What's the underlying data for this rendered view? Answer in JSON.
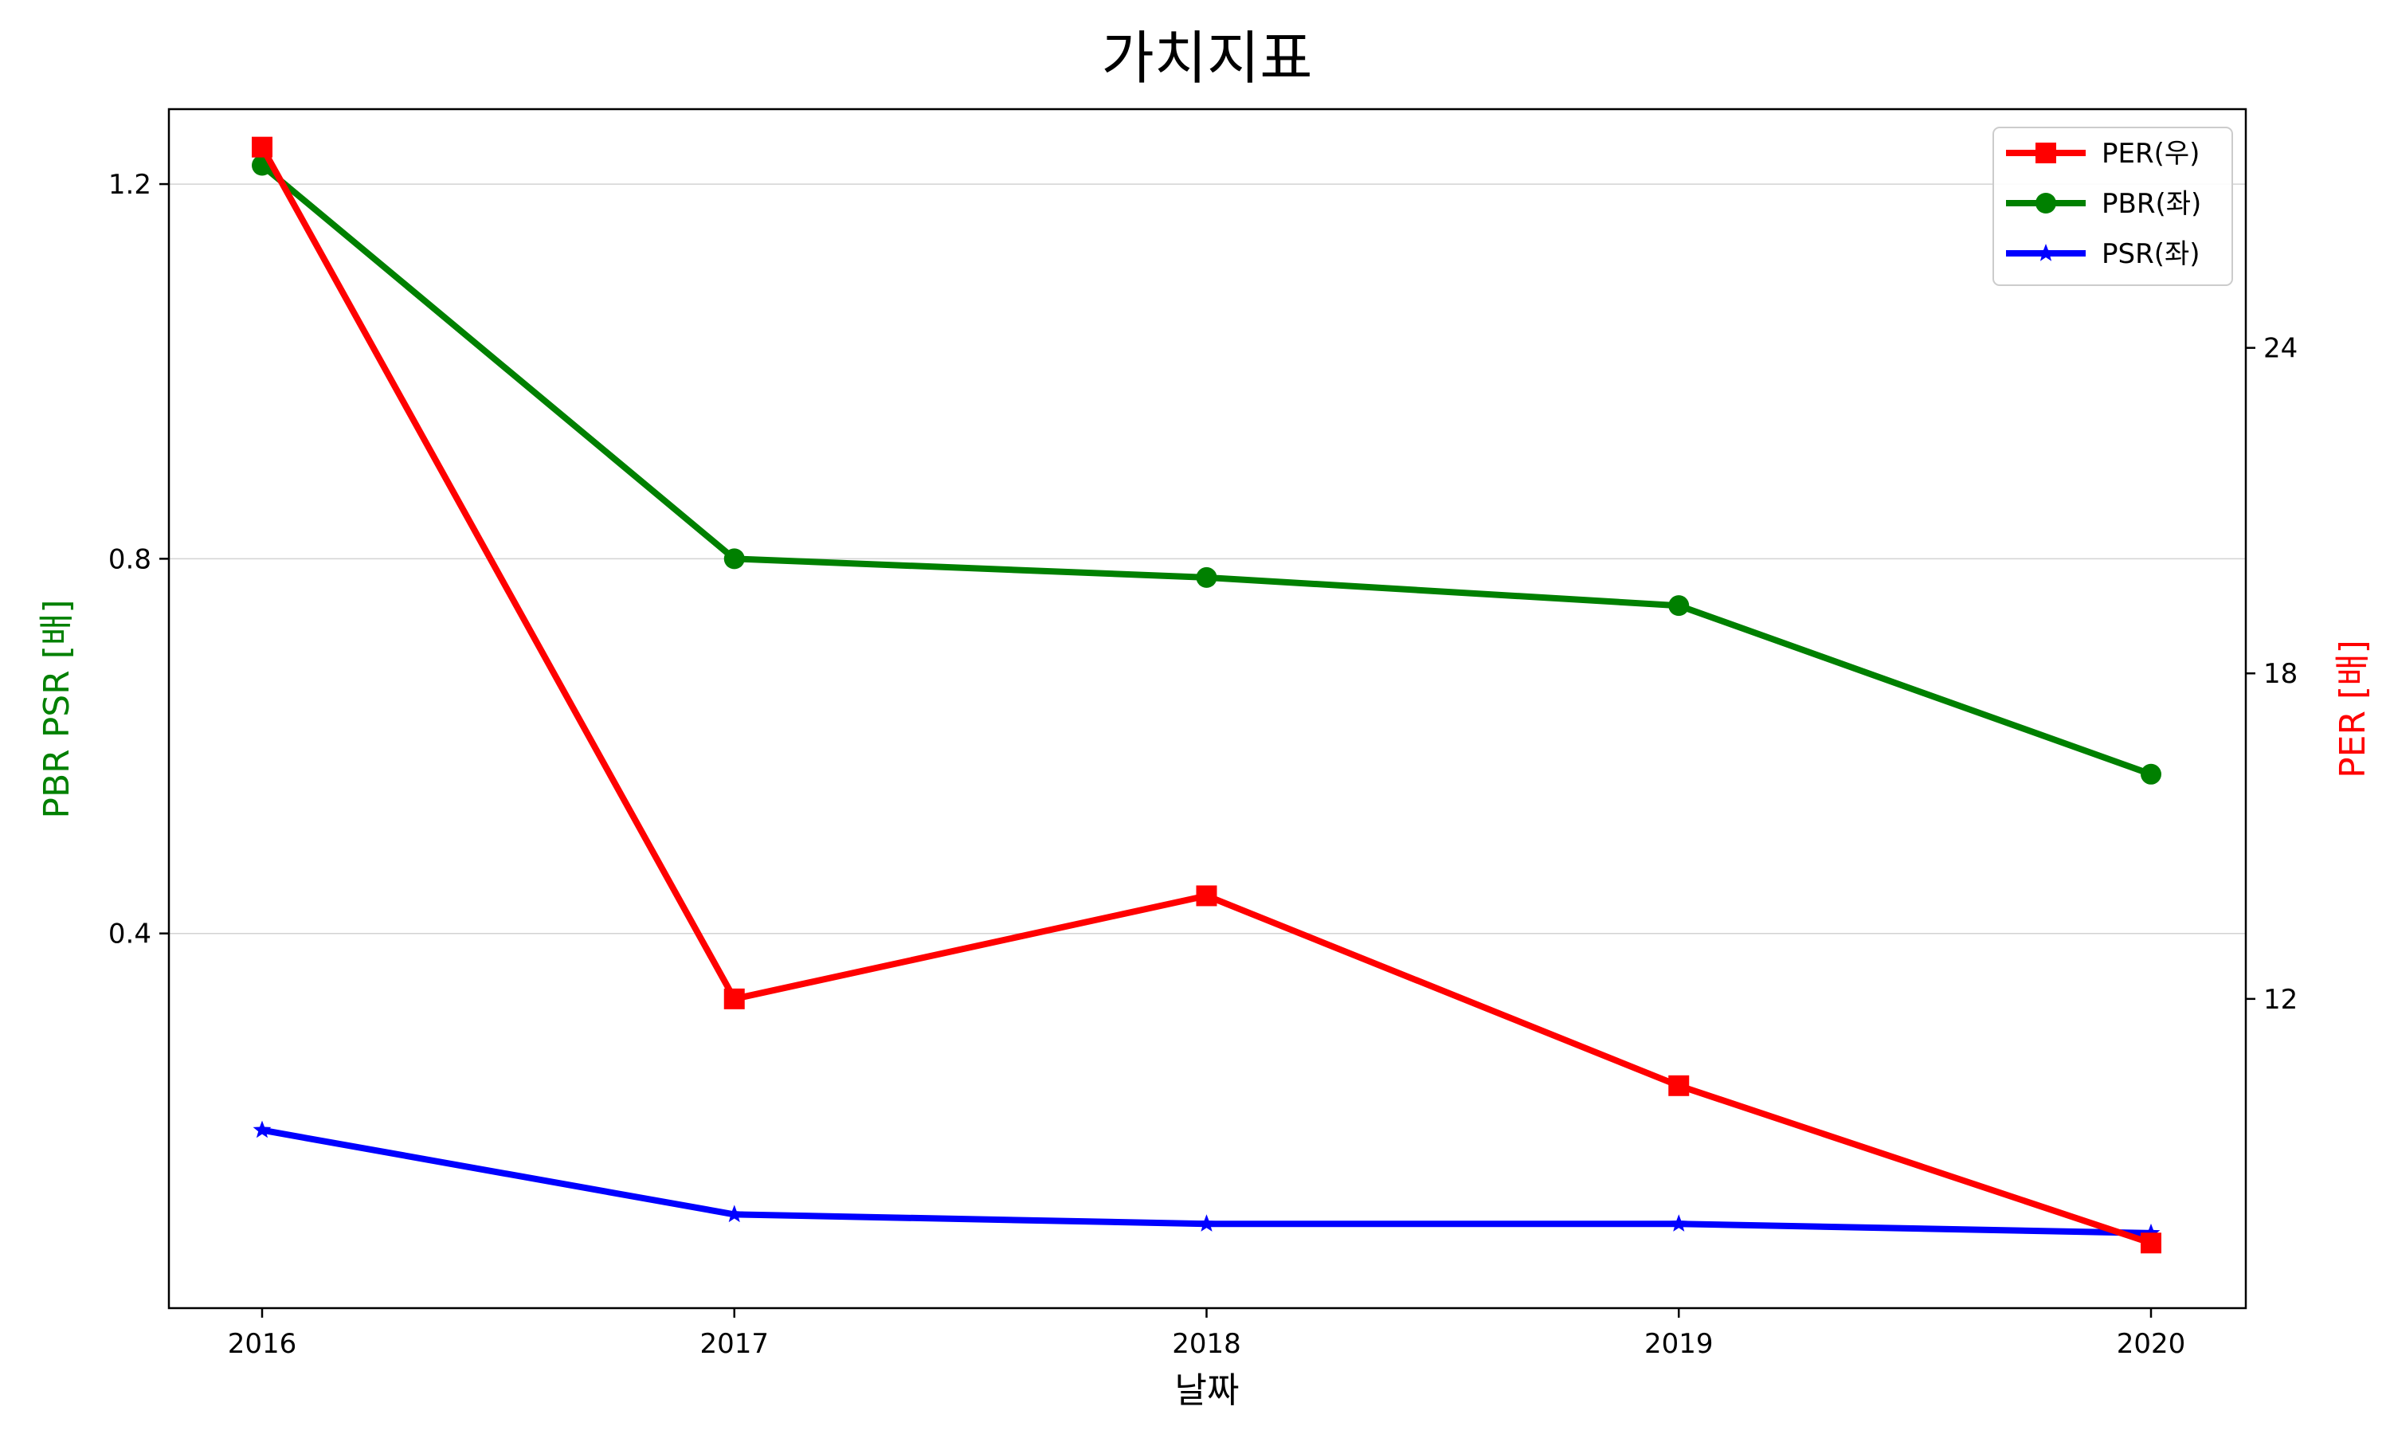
{
  "chart_data": {
    "type": "line",
    "title": "가치지표",
    "xlabel": "날짜",
    "ylabel_left": "PBR PSR [배]",
    "ylabel_right": "PER [배]",
    "x": [
      "2016",
      "2017",
      "2018",
      "2019",
      "2020"
    ],
    "left_axis": {
      "ylim": [
        0.0,
        1.28
      ],
      "ticks": [
        0.4,
        0.8,
        1.2
      ],
      "tick_labels": [
        "0.4",
        "0.8",
        "1.2"
      ],
      "color": "#008000"
    },
    "right_axis": {
      "ylim": [
        6.3,
        28.4
      ],
      "ticks": [
        12,
        18,
        24
      ],
      "tick_labels": [
        "12",
        "18",
        "24"
      ],
      "color": "#ff0000"
    },
    "grid": "horizontal (left axis)",
    "legend": "top-right",
    "series": [
      {
        "name": "PER(우)",
        "axis": "right",
        "color": "#ff0000",
        "marker": "square",
        "values": [
          27.7,
          12.0,
          13.9,
          10.4,
          7.5
        ]
      },
      {
        "name": "PBR(좌)",
        "axis": "left",
        "color": "#008000",
        "marker": "circle",
        "values": [
          1.22,
          0.8,
          0.78,
          0.75,
          0.57
        ]
      },
      {
        "name": "PSR(좌)",
        "axis": "left",
        "color": "#0000ff",
        "marker": "star",
        "values": [
          0.19,
          0.1,
          0.09,
          0.09,
          0.08
        ]
      }
    ]
  }
}
